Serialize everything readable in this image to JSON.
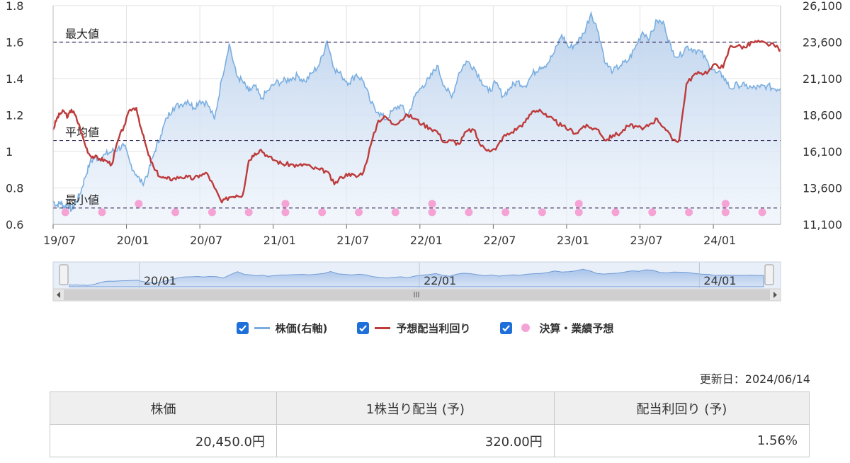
{
  "chart_data": {
    "type": "line",
    "y_left_ticks": [
      "1.8",
      "1.6",
      "1.4",
      "1.2",
      "1",
      "0.8",
      "0.6"
    ],
    "y_left_range": [
      0.6,
      1.8
    ],
    "y_right_ticks": [
      "26,100",
      "23,600",
      "21,100",
      "18,600",
      "16,100",
      "13,600",
      "11,100"
    ],
    "y_right_range": [
      11100,
      26100
    ],
    "x_ticks": [
      "19/07",
      "20/01",
      "20/07",
      "21/01",
      "21/07",
      "22/01",
      "22/07",
      "23/01",
      "23/07",
      "24/01"
    ],
    "x_range": [
      "2019-07",
      "2024-06"
    ],
    "reference_lines": [
      {
        "label": "最大値",
        "value": 1.6
      },
      {
        "label": "平均値",
        "value": 1.06
      },
      {
        "label": "最小値",
        "value": 0.69
      }
    ],
    "series": [
      {
        "name": "株価(右軸)",
        "axis": "right",
        "color": "#7aaee0",
        "x": [
          0,
          0.3,
          0.6,
          0.9,
          1.2,
          1.5,
          1.8,
          2.2,
          2.6,
          3.0,
          3.4,
          3.8,
          4.3,
          4.8,
          5.3,
          5.8,
          6.3,
          6.8,
          7.3,
          7.8,
          8.3,
          8.8,
          9.3,
          9.8,
          10.4,
          11.0,
          11.5,
          12.0,
          12.6,
          13.2,
          13.8,
          14.4,
          15.0,
          15.5,
          16.0,
          16.5,
          17.0,
          17.6,
          18.2,
          18.8,
          19.4,
          20.0,
          20.6,
          21.2,
          21.8,
          22.4,
          23.0,
          23.6,
          24.2,
          24.8,
          25.4,
          26.0,
          26.6,
          27.2,
          27.8,
          28.4,
          29.0,
          29.6,
          30.2,
          30.8,
          31.4,
          32.0,
          32.6,
          33.2,
          33.8,
          34.4,
          35.0,
          35.6,
          36.2,
          36.8,
          37.4,
          38.0,
          38.6,
          39.2,
          39.8,
          40.4,
          41.0,
          41.6,
          42.2,
          42.8,
          43.4,
          44.0,
          44.6,
          45.2,
          45.8,
          46.4,
          47.0,
          47.6,
          48.2,
          48.8,
          49.4,
          50.0,
          50.6,
          51.2,
          51.8,
          52.4,
          53.0,
          53.6,
          54.2,
          54.8,
          55.4,
          56.0,
          56.6,
          57.2,
          57.8,
          58.4,
          59.0,
          59.5
        ],
        "values": [
          12700,
          12400,
          12600,
          12300,
          12500,
          12100,
          12500,
          13200,
          14300,
          15300,
          15700,
          15600,
          15900,
          16100,
          16300,
          16500,
          15300,
          14500,
          13900,
          14700,
          16100,
          17200,
          18400,
          19100,
          19300,
          19600,
          19100,
          19600,
          19400,
          18300,
          21100,
          23500,
          21300,
          20900,
          20200,
          20600,
          19700,
          20300,
          20800,
          20900,
          21100,
          21300,
          20900,
          21500,
          22100,
          23700,
          21800,
          21300,
          20800,
          21400,
          20900,
          19400,
          18800,
          18300,
          18900,
          19300,
          18500,
          19900,
          20600,
          21100,
          22000,
          20600,
          19800,
          21500,
          22300,
          21900,
          21000,
          20200,
          20800,
          19900,
          20500,
          20900,
          20600,
          21400,
          21900,
          22100,
          22900,
          24100,
          23200,
          23500,
          24200,
          25600,
          24300,
          22100,
          21600,
          22000,
          22300,
          23200,
          24300,
          23900,
          25100,
          24800,
          23000,
          22600,
          23300,
          23100,
          22900,
          22100,
          21500,
          21300,
          20400,
          20700,
          20600,
          20450,
          20500,
          20600,
          20400,
          20450
        ]
      },
      {
        "name": "予想配当利回り",
        "axis": "left",
        "color": "#bd3b3b",
        "x": [
          0,
          0.3,
          0.6,
          0.9,
          1.2,
          1.5,
          1.8,
          2.2,
          2.6,
          3.0,
          3.4,
          3.8,
          4.3,
          4.8,
          5.3,
          5.8,
          6.3,
          6.8,
          7.3,
          7.8,
          8.3,
          8.8,
          9.3,
          9.8,
          10.4,
          11.0,
          11.5,
          12.0,
          12.6,
          13.2,
          13.8,
          14.4,
          15.0,
          15.5,
          16.0,
          16.5,
          17.0,
          17.6,
          18.2,
          18.8,
          19.4,
          20.0,
          20.6,
          21.2,
          21.8,
          22.4,
          23.0,
          23.6,
          24.2,
          24.8,
          25.4,
          26.0,
          26.6,
          27.2,
          27.8,
          28.4,
          29.0,
          29.6,
          30.2,
          30.8,
          31.4,
          32.0,
          32.6,
          33.2,
          33.8,
          34.4,
          35.0,
          35.6,
          36.2,
          36.8,
          37.4,
          38.0,
          38.6,
          39.2,
          39.8,
          40.4,
          41.0,
          41.6,
          42.2,
          42.8,
          43.4,
          44.0,
          44.6,
          45.2,
          45.8,
          46.4,
          47.0,
          47.6,
          48.2,
          48.8,
          49.4,
          50.0,
          50.6,
          51.2,
          51.8,
          52.4,
          53.0,
          53.6,
          54.2,
          54.8,
          55.4,
          56.0,
          56.6,
          57.2,
          57.8,
          58.4,
          59.0,
          59.5
        ],
        "values": [
          1.12,
          1.18,
          1.21,
          1.22,
          1.19,
          1.23,
          1.2,
          1.13,
          1.04,
          0.98,
          0.97,
          0.96,
          0.95,
          0.93,
          1.06,
          1.14,
          1.23,
          1.24,
          1.1,
          0.98,
          0.9,
          0.86,
          0.85,
          0.85,
          0.86,
          0.86,
          0.85,
          0.87,
          0.88,
          0.8,
          0.72,
          0.75,
          0.76,
          0.76,
          0.95,
          0.99,
          1.01,
          0.97,
          0.95,
          0.93,
          0.93,
          0.92,
          0.93,
          0.91,
          0.9,
          0.89,
          0.82,
          0.86,
          0.88,
          0.86,
          0.89,
          1.04,
          1.17,
          1.19,
          1.15,
          1.17,
          1.2,
          1.18,
          1.15,
          1.13,
          1.11,
          1.05,
          1.06,
          1.04,
          1.11,
          1.12,
          1.03,
          1.01,
          1.01,
          1.08,
          1.1,
          1.13,
          1.16,
          1.22,
          1.23,
          1.19,
          1.17,
          1.14,
          1.12,
          1.1,
          1.14,
          1.13,
          1.12,
          1.06,
          1.09,
          1.1,
          1.14,
          1.14,
          1.12,
          1.15,
          1.18,
          1.13,
          1.07,
          1.06,
          1.37,
          1.42,
          1.43,
          1.44,
          1.48,
          1.46,
          1.58,
          1.58,
          1.57,
          1.6,
          1.6,
          1.59,
          1.58,
          1.56
        ]
      }
    ],
    "event_markers": {
      "name": "決算・業績予想",
      "color": "#f5a3d4",
      "months": [
        1,
        4,
        7,
        10,
        13,
        16,
        19,
        19,
        22,
        25,
        28,
        31,
        31,
        34,
        37,
        40,
        43,
        43,
        46,
        49,
        52,
        55,
        55,
        58
      ],
      "raised": [
        0,
        0,
        1,
        0,
        0,
        0,
        0,
        1,
        0,
        0,
        0,
        0,
        1,
        0,
        0,
        0,
        0,
        1,
        0,
        0,
        0,
        0,
        1,
        0
      ]
    },
    "navigator": {
      "labels": [
        "20/01",
        "22/01",
        "24/01"
      ]
    },
    "legend_position": "bottom"
  },
  "legend": {
    "items": [
      {
        "label": "株価(右軸)"
      },
      {
        "label": "予想配当利回り"
      },
      {
        "label": "決算・業績予想"
      }
    ]
  },
  "updated": "更新日：2024/06/14",
  "table": {
    "headers": [
      "株価",
      "1株当り配当 (予)",
      "配当利回り (予)"
    ],
    "values": [
      "20,450.0円",
      "320.00円",
      "1.56%"
    ]
  },
  "colors": {
    "price": "#7aaee0",
    "yield": "#bd3b3b",
    "event": "#f5a3d4",
    "checkbox": "#1e6fd9"
  }
}
